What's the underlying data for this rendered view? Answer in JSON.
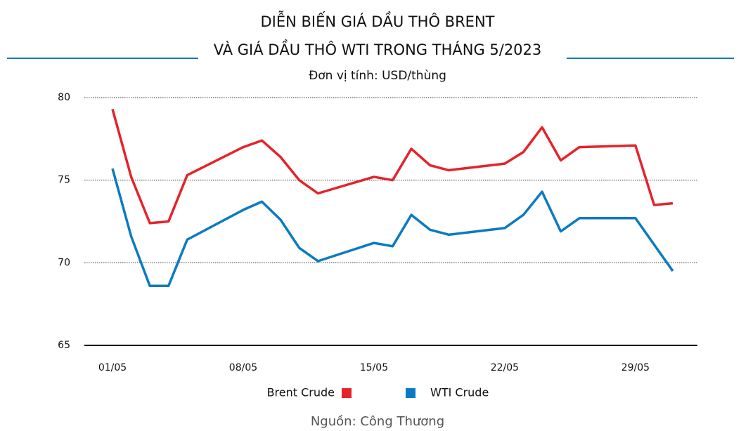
{
  "chart_data": {
    "type": "line",
    "title": "DIỄN BIẾN GIÁ DẦU THÔ BRENT",
    "title_line2": "VÀ GIÁ DẦU THÔ WTI TRONG THÁNG 5/2023",
    "subtitle": "Đơn vị tính: USD/thùng",
    "source": "Nguồn: Công Thương",
    "x": [
      1,
      2,
      3,
      4,
      5,
      8,
      9,
      10,
      11,
      12,
      15,
      16,
      17,
      18,
      19,
      22,
      23,
      24,
      25,
      26,
      29,
      30,
      31
    ],
    "xlim": [
      1,
      31
    ],
    "xticks": [
      {
        "value": 1,
        "label": "01/05"
      },
      {
        "value": 8,
        "label": "08/05"
      },
      {
        "value": 15,
        "label": "15/05"
      },
      {
        "value": 22,
        "label": "22/05"
      },
      {
        "value": 29,
        "label": "29/05"
      }
    ],
    "ylim": [
      65,
      80
    ],
    "yticks": [
      65,
      70,
      75,
      80
    ],
    "grid": true,
    "series": [
      {
        "name": "Brent Crude",
        "color": "#e3242b",
        "values": [
          79.3,
          75.2,
          72.4,
          72.5,
          75.3,
          77.0,
          77.4,
          76.4,
          75.0,
          74.2,
          75.2,
          75.0,
          76.9,
          75.9,
          75.6,
          76.0,
          76.7,
          78.2,
          76.2,
          77.0,
          77.1,
          73.5,
          73.6
        ]
      },
      {
        "name": "WTI Crude",
        "color": "#0a7bc2",
        "values": [
          75.7,
          71.6,
          68.6,
          68.6,
          71.4,
          73.2,
          73.7,
          72.6,
          70.9,
          70.1,
          71.2,
          71.0,
          72.9,
          72.0,
          71.7,
          72.1,
          72.9,
          74.3,
          71.9,
          72.7,
          72.7,
          71.1,
          69.5
        ]
      }
    ]
  }
}
